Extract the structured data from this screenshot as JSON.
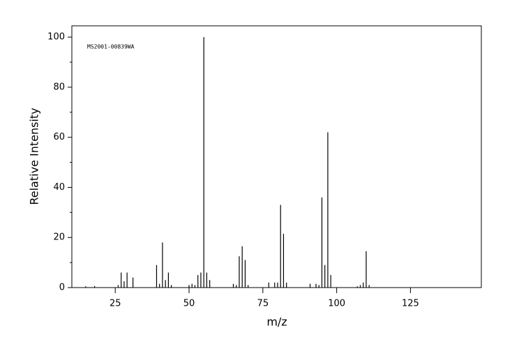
{
  "chart_data": {
    "type": "stem",
    "annotation": "MS2001-00839WA",
    "x_label": "m/z",
    "y_label": "Relative Intensity",
    "x": [
      15,
      18,
      26,
      27,
      28,
      29,
      31,
      39,
      40,
      41,
      42,
      43,
      44,
      50,
      51,
      52,
      53,
      54,
      55,
      56,
      57,
      65,
      66,
      67,
      68,
      69,
      70,
      77,
      79,
      80,
      81,
      82,
      83,
      91,
      93,
      94,
      95,
      96,
      97,
      98,
      107,
      108,
      109,
      110,
      111
    ],
    "values": [
      0.5,
      0.6,
      1.0,
      6,
      2.5,
      6,
      4,
      9,
      1.5,
      18,
      3,
      6,
      1,
      1,
      1.5,
      1,
      5,
      6,
      100,
      6,
      3,
      1.5,
      1,
      12.5,
      16.5,
      11,
      1,
      2,
      2,
      2,
      33,
      21.5,
      2,
      1.5,
      1.5,
      1,
      36,
      9,
      62,
      5,
      0.5,
      1,
      2,
      14.5,
      1
    ],
    "color": "#000000",
    "xlim": [
      10.3,
      149
    ],
    "ylim": [
      0,
      104.5
    ],
    "xticks": [
      25,
      50,
      75,
      100,
      125
    ],
    "yticks": [
      0,
      20,
      40,
      60,
      80,
      100
    ],
    "yminorticks": [
      10,
      30,
      50,
      70,
      90
    ]
  }
}
